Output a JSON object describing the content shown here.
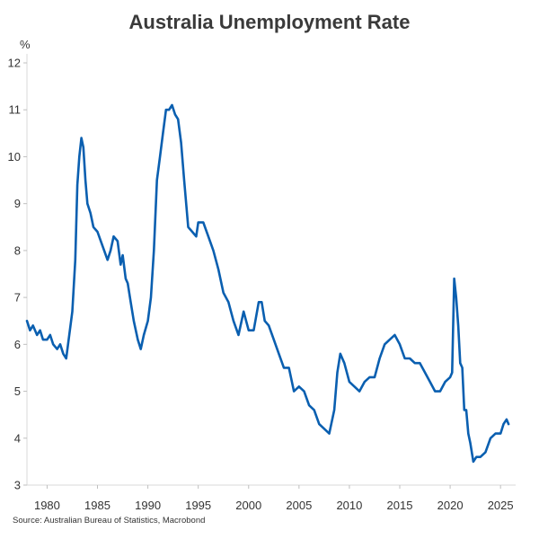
{
  "chart_data": {
    "type": "line",
    "title": "Australia Unemployment Rate",
    "ylabel": "%",
    "xlabel": "",
    "source": "Source: Australian Bureau of Statistics, Macrobond",
    "ylim": [
      3,
      12
    ],
    "xlim": [
      1978,
      2026.5
    ],
    "grid": false,
    "line_color": "#0a5fb0",
    "x_ticks": [
      "1980",
      "1985",
      "1990",
      "1995",
      "2000",
      "2005",
      "2010",
      "2015",
      "2020",
      "2025"
    ],
    "y_ticks": [
      "3",
      "4",
      "5",
      "6",
      "7",
      "8",
      "9",
      "10",
      "11",
      "12"
    ],
    "series": [
      {
        "x": [
          1978.0,
          1978.3,
          1978.6,
          1979.0,
          1979.3,
          1979.6,
          1980.0,
          1980.3,
          1980.6,
          1981.0,
          1981.3,
          1981.6,
          1981.9,
          1982.2,
          1982.5,
          1982.8,
          1983.0,
          1983.2,
          1983.4,
          1983.6,
          1983.8,
          1984.0,
          1984.3,
          1984.6,
          1985.0,
          1985.5,
          1986.0,
          1986.3,
          1986.6,
          1987.0,
          1987.3,
          1987.5,
          1987.8,
          1988.0,
          1988.3,
          1988.6,
          1989.0,
          1989.3,
          1989.6,
          1990.0,
          1990.3,
          1990.6,
          1990.9,
          1991.2,
          1991.5,
          1991.8,
          1992.1,
          1992.4,
          1992.7,
          1993.0,
          1993.3,
          1993.6,
          1994.0,
          1994.4,
          1994.8,
          1995.0,
          1995.5,
          1996.0,
          1996.5,
          1997.0,
          1997.5,
          1998.0,
          1998.5,
          1999.0,
          1999.5,
          2000.0,
          2000.5,
          2001.0,
          2001.3,
          2001.6,
          2002.0,
          2002.5,
          2003.0,
          2003.5,
          2004.0,
          2004.5,
          2005.0,
          2005.5,
          2006.0,
          2006.5,
          2007.0,
          2007.5,
          2008.0,
          2008.5,
          2008.8,
          2009.1,
          2009.5,
          2010.0,
          2010.5,
          2011.0,
          2011.5,
          2012.0,
          2012.5,
          2013.0,
          2013.5,
          2014.0,
          2014.5,
          2015.0,
          2015.5,
          2016.0,
          2016.5,
          2017.0,
          2017.5,
          2018.0,
          2018.5,
          2019.0,
          2019.5,
          2020.0,
          2020.2,
          2020.4,
          2020.6,
          2020.8,
          2021.0,
          2021.2,
          2021.4,
          2021.6,
          2021.8,
          2022.0,
          2022.3,
          2022.6,
          2023.0,
          2023.5,
          2024.0,
          2024.5,
          2025.0,
          2025.3,
          2025.6,
          2025.8
        ],
        "values": [
          6.5,
          6.3,
          6.4,
          6.2,
          6.3,
          6.1,
          6.1,
          6.2,
          6.0,
          5.9,
          6.0,
          5.8,
          5.7,
          6.2,
          6.7,
          7.8,
          9.4,
          10.0,
          10.4,
          10.2,
          9.5,
          9.0,
          8.8,
          8.5,
          8.4,
          8.1,
          7.8,
          8.0,
          8.3,
          8.2,
          7.7,
          7.9,
          7.4,
          7.3,
          6.9,
          6.5,
          6.1,
          5.9,
          6.2,
          6.5,
          7.0,
          8.0,
          9.5,
          10.0,
          10.5,
          11.0,
          11.0,
          11.1,
          10.9,
          10.8,
          10.3,
          9.5,
          8.5,
          8.4,
          8.3,
          8.6,
          8.6,
          8.3,
          8.0,
          7.6,
          7.1,
          6.9,
          6.5,
          6.2,
          6.7,
          6.3,
          6.3,
          6.9,
          6.9,
          6.5,
          6.4,
          6.1,
          5.8,
          5.5,
          5.5,
          5.0,
          5.1,
          5.0,
          4.7,
          4.6,
          4.3,
          4.2,
          4.1,
          4.6,
          5.4,
          5.8,
          5.6,
          5.2,
          5.1,
          5.0,
          5.2,
          5.3,
          5.3,
          5.7,
          6.0,
          6.1,
          6.2,
          6.0,
          5.7,
          5.7,
          5.6,
          5.6,
          5.4,
          5.2,
          5.0,
          5.0,
          5.2,
          5.3,
          5.4,
          7.4,
          7.0,
          6.4,
          5.6,
          5.5,
          4.6,
          4.6,
          4.1,
          3.9,
          3.5,
          3.6,
          3.6,
          3.7,
          4.0,
          4.1,
          4.1,
          4.3,
          4.4,
          4.3
        ]
      }
    ]
  }
}
